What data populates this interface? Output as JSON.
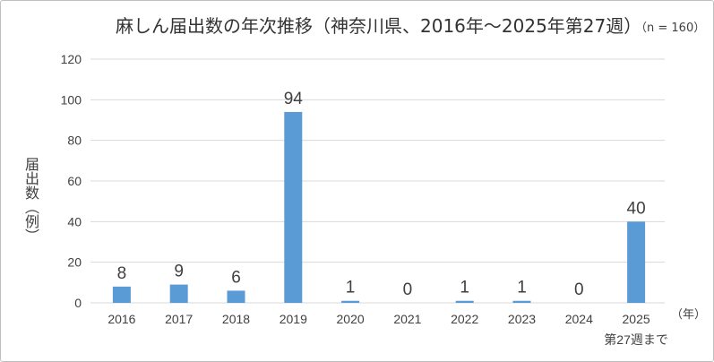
{
  "chart_data": {
    "type": "bar",
    "title": "麻しん届出数の年次推移（神奈川県、2016年～2025年第27週）",
    "note": "（n = 160）",
    "ylabel": "届出数（例）",
    "xlabel": "（年）",
    "categories": [
      "2016",
      "2017",
      "2018",
      "2019",
      "2020",
      "2021",
      "2022",
      "2023",
      "2024",
      "2025"
    ],
    "values": [
      8,
      9,
      6,
      94,
      1,
      0,
      1,
      1,
      0,
      40
    ],
    "annotation": {
      "category": "2025",
      "text": "第27週まで"
    },
    "data_labels": true,
    "ylim": [
      0,
      120
    ],
    "yticks": [
      0,
      20,
      40,
      60,
      80,
      100,
      120
    ],
    "grid": true
  },
  "colors": {
    "bar": "#5b9bd5",
    "grid": "#d9d9d9",
    "text": "#404040"
  }
}
